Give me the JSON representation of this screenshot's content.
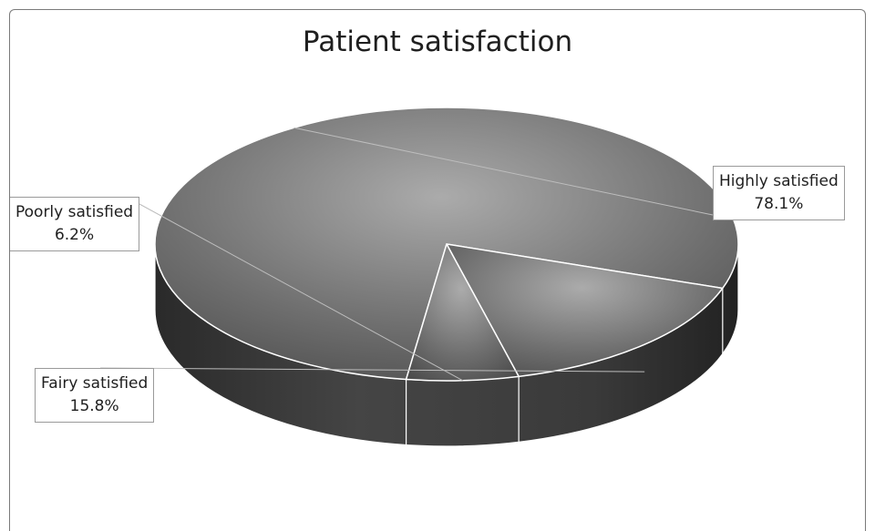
{
  "chart_data": {
    "type": "pie",
    "title": "Patient satisfaction",
    "categories": [
      "Highly satisfied",
      "Fairy satisfied",
      "Poorly satisfied"
    ],
    "values": [
      78.1,
      15.8,
      6.2
    ],
    "value_labels": [
      "78.1%",
      "15.8%",
      "6.2%"
    ],
    "style": "3d-tilted",
    "legend": "none"
  }
}
